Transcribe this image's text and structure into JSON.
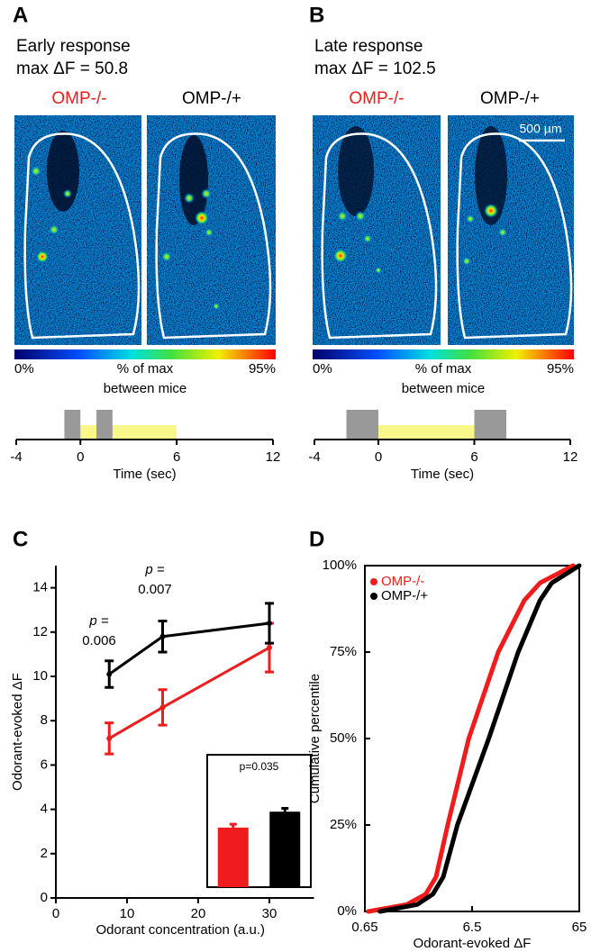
{
  "panel_a": {
    "letter": "A",
    "title": "Early response",
    "subtitle": "max ΔF = 50.8",
    "image_labels": [
      "OMP-/-",
      "OMP-/+"
    ],
    "colorbar": {
      "min_label": "0%",
      "mid_label": "% of max",
      "max_label": "95%",
      "caption": "between mice"
    }
  },
  "panel_b": {
    "letter": "B",
    "title": "Late response",
    "subtitle": "max ΔF = 102.5",
    "image_labels": [
      "OMP-/-",
      "OMP-/+"
    ],
    "scale_bar": "500 µm",
    "colorbar": {
      "min_label": "0%",
      "mid_label": "% of max",
      "max_label": "95%",
      "caption": "between mice"
    }
  },
  "panel_c": {
    "letter": "C"
  },
  "panel_d": {
    "letter": "D"
  },
  "chart_data": [
    {
      "type": "timeline",
      "x_label": "Time (sec)",
      "xlim": [
        -4,
        12
      ],
      "xticks": [
        -4,
        0,
        6,
        12
      ],
      "stimulus": [
        {
          "start": 0,
          "end": 6,
          "color": "#f7f78a"
        }
      ],
      "frames": [
        {
          "start": -1,
          "end": 0,
          "color": "#999999"
        },
        {
          "start": 1,
          "end": 2,
          "color": "#999999"
        }
      ]
    },
    {
      "type": "timeline",
      "x_label": "Time (sec)",
      "xlim": [
        -4,
        12
      ],
      "xticks": [
        -4,
        0,
        6,
        12
      ],
      "stimulus": [
        {
          "start": 0,
          "end": 6,
          "color": "#f7f78a"
        }
      ],
      "frames": [
        {
          "start": -2,
          "end": 0,
          "color": "#999999"
        },
        {
          "start": 6,
          "end": 8,
          "color": "#999999"
        }
      ]
    },
    {
      "type": "line",
      "x_label": "Odorant concentration (a.u.)",
      "y_label": "Odorant-evoked ΔF",
      "x": [
        7.5,
        15,
        30
      ],
      "xlim": [
        0,
        35
      ],
      "xticks": [
        0,
        10,
        20,
        30
      ],
      "ylim": [
        0,
        15
      ],
      "yticks": [
        0,
        2,
        4,
        6,
        8,
        10,
        12,
        14
      ],
      "series": [
        {
          "name": "OMP-/-",
          "color": "#ee1c1c",
          "values": [
            7.2,
            8.6,
            11.3
          ],
          "errors": [
            0.7,
            0.8,
            1.1
          ]
        },
        {
          "name": "OMP-/+",
          "color": "#000000",
          "values": [
            10.1,
            11.8,
            12.4
          ],
          "errors": [
            0.6,
            0.7,
            0.9
          ]
        }
      ],
      "annotations": [
        "p =",
        "0.006",
        "p =",
        "0.007"
      ],
      "inset": {
        "type": "bar",
        "annotation": "p=0.035",
        "ylim": [
          0,
          20
        ],
        "values": [
          9.0,
          11.4
        ],
        "errors": [
          0.5,
          0.5
        ],
        "colors": [
          "#ee1c1c",
          "#000000"
        ]
      }
    },
    {
      "type": "line",
      "x_label": "Odorant-evoked ΔF",
      "y_label": "Cumulative percentile",
      "log_x": true,
      "xlim": [
        0.65,
        65
      ],
      "xticks": [
        0.65,
        6.5,
        65
      ],
      "ylim": [
        0,
        100
      ],
      "yticks": [
        {
          "value": 0,
          "label": "0%"
        },
        {
          "value": 25,
          "label": "25%"
        },
        {
          "value": 50,
          "label": "50%"
        },
        {
          "value": 75,
          "label": "75%"
        },
        {
          "value": 100,
          "label": "100%"
        }
      ],
      "legend": "top-left",
      "series": [
        {
          "name": "OMP-/-",
          "color": "#ee1c1c",
          "x": [
            0.7,
            1.6,
            2.4,
            3.0,
            3.85,
            6.05,
            11.4,
            20,
            28,
            57
          ],
          "values": [
            0,
            2,
            5,
            10,
            25,
            50,
            75,
            90,
            95,
            100
          ]
        },
        {
          "name": "OMP-/+",
          "color": "#000000",
          "x": [
            0.9,
            2.0,
            2.8,
            3.5,
            4.74,
            9.3,
            17.5,
            28,
            36,
            65
          ],
          "values": [
            0,
            2,
            5,
            10,
            25,
            50,
            75,
            90,
            95,
            100
          ]
        }
      ]
    }
  ]
}
